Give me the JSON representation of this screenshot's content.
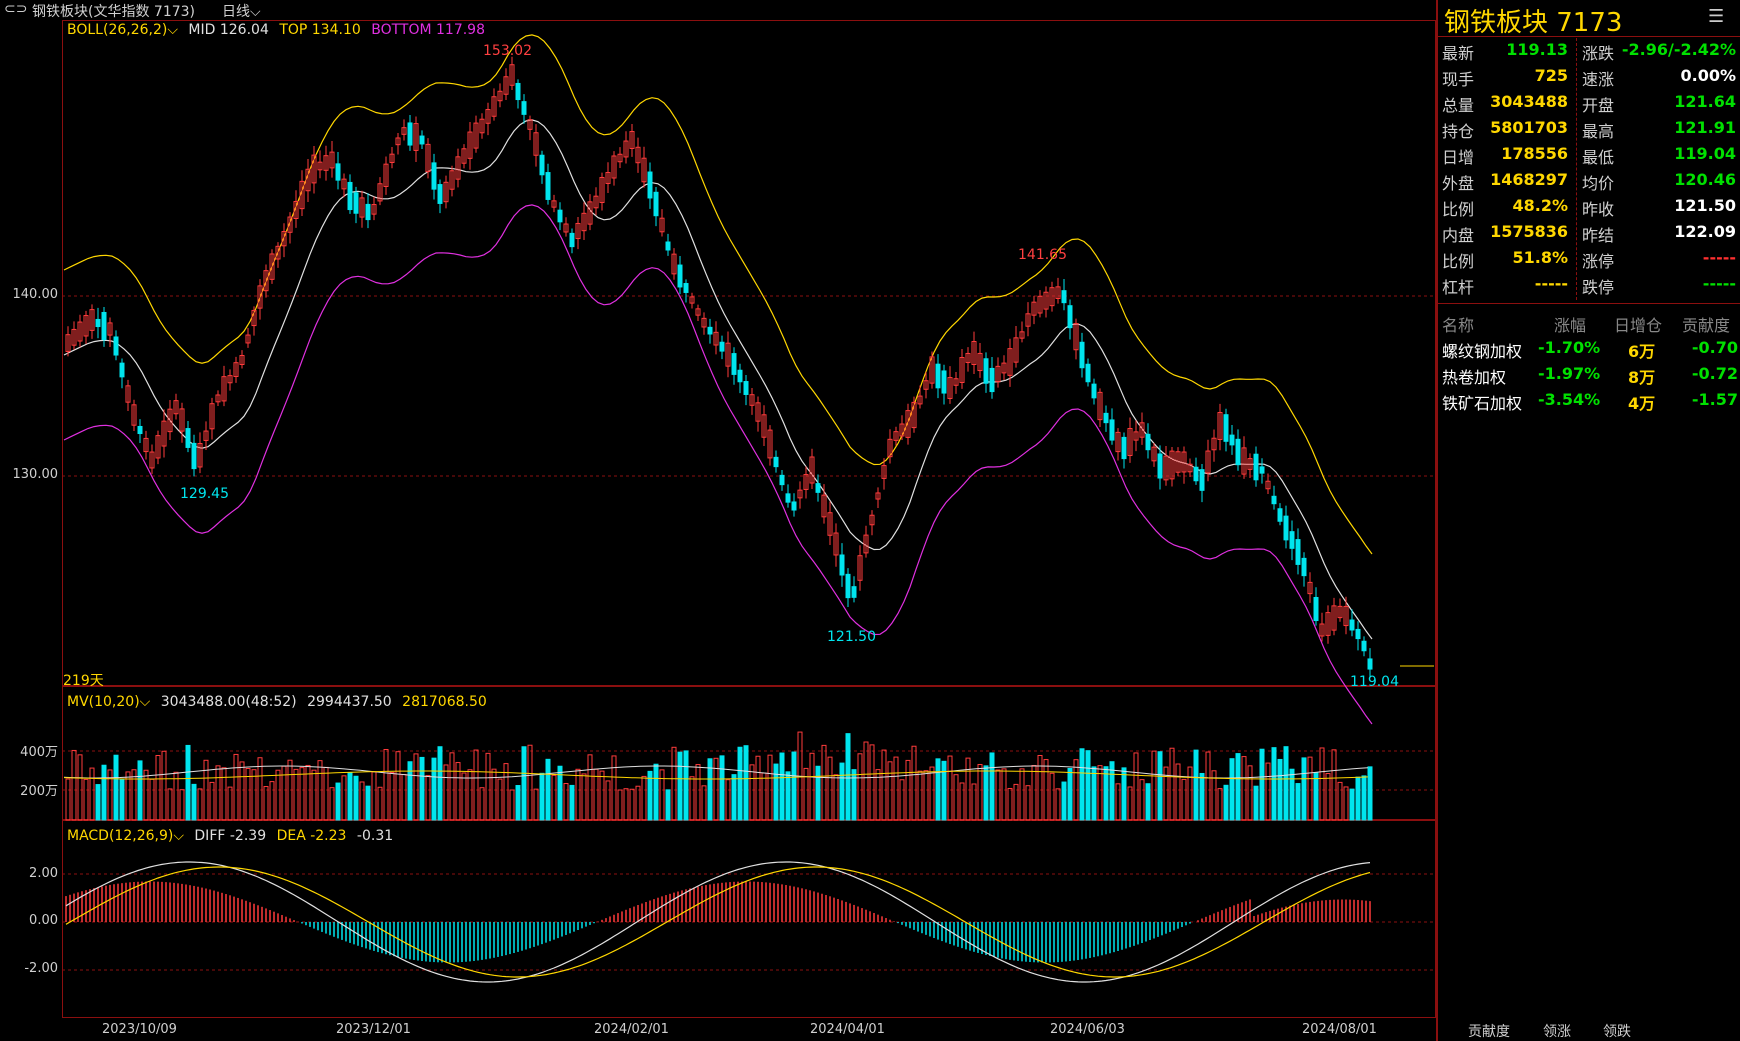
{
  "title_bar": {
    "name": "钢铁板块(文华指数 7173)",
    "period": "日线"
  },
  "main_indicator": {
    "label": "BOLL(26,26,2)",
    "mid": "MID 126.04",
    "top": "TOP 134.10",
    "bottom": "BOTTOM 117.98"
  },
  "price_labels": {
    "p153": "153.02",
    "p141": "141.65",
    "p129": "129.45",
    "p121": "121.50",
    "p119": "119.04"
  },
  "y_axis_main": [
    "140.00",
    "130.00"
  ],
  "days_label": "219天",
  "volume_indicator": {
    "label": "MV(10,20)",
    "v1": "3043488.00(48:52)",
    "v2": "2994437.50",
    "v3": "2817068.50"
  },
  "y_axis_vol": [
    "400万",
    "200万"
  ],
  "macd_indicator": {
    "label": "MACD(12,26,9)",
    "diff": "DIFF -2.39",
    "dea": "DEA -2.23",
    "macd": "-0.31"
  },
  "y_axis_macd": [
    "2.00",
    "0.00",
    "-2.00"
  ],
  "x_axis": [
    "2023/10/09",
    "2023/12/01",
    "2024/02/01",
    "2024/04/01",
    "2024/06/03",
    "2024/08/01"
  ],
  "panel": {
    "title": "钢铁板块  7173",
    "left_rows": [
      {
        "label": "最新",
        "value": "119.13",
        "color": "#00e000"
      },
      {
        "label": "现手",
        "value": "725",
        "color": "#ffd700"
      },
      {
        "label": "总量",
        "value": "3043488",
        "color": "#ffd700"
      },
      {
        "label": "持仓",
        "value": "5801703",
        "color": "#ffd700"
      },
      {
        "label": "日增",
        "value": "178556",
        "color": "#ffd700"
      },
      {
        "label": "外盘",
        "value": "1468297",
        "color": "#ffd700"
      },
      {
        "label": "比例",
        "value": "48.2%",
        "color": "#ffd700"
      },
      {
        "label": "内盘",
        "value": "1575836",
        "color": "#ffd700"
      },
      {
        "label": "比例",
        "value": "51.8%",
        "color": "#ffd700"
      },
      {
        "label": "杠杆",
        "value": "-----",
        "color": "#ffd700"
      }
    ],
    "right_rows": [
      {
        "label": "涨跌",
        "value": "-2.96/-2.42%",
        "color": "#00e000"
      },
      {
        "label": "速涨",
        "value": "0.00%",
        "color": "#ffffff"
      },
      {
        "label": "开盘",
        "value": "121.64",
        "color": "#00e000"
      },
      {
        "label": "最高",
        "value": "121.91",
        "color": "#00e000"
      },
      {
        "label": "最低",
        "value": "119.04",
        "color": "#00e000"
      },
      {
        "label": "均价",
        "value": "120.46",
        "color": "#00e000"
      },
      {
        "label": "昨收",
        "value": "121.50",
        "color": "#ffffff"
      },
      {
        "label": "昨结",
        "value": "122.09",
        "color": "#ffffff"
      },
      {
        "label": "涨停",
        "value": "-----",
        "color": "#ff3030"
      },
      {
        "label": "跌停",
        "value": "-----",
        "color": "#00e000"
      }
    ],
    "contrib_headers": [
      "名称",
      "涨幅",
      "日增仓",
      "贡献度"
    ],
    "contrib_rows": [
      {
        "name": "螺纹钢加权",
        "change": "-1.70%",
        "oi": "6万",
        "contrib": "-0.70"
      },
      {
        "name": "热卷加权",
        "change": "-1.97%",
        "oi": "8万",
        "contrib": "-0.72"
      },
      {
        "name": "铁矿石加权",
        "change": "-3.54%",
        "oi": "4万",
        "contrib": "-1.57"
      }
    ],
    "tabs": [
      "贡献度",
      "领涨",
      "领跌"
    ]
  },
  "colors": {
    "up": "#ff3b3b",
    "down": "#00e5ee",
    "yellow": "#ffd700",
    "magenta": "#e030e0",
    "white": "#e0e0e0",
    "grid": "#8b0f0f"
  }
}
